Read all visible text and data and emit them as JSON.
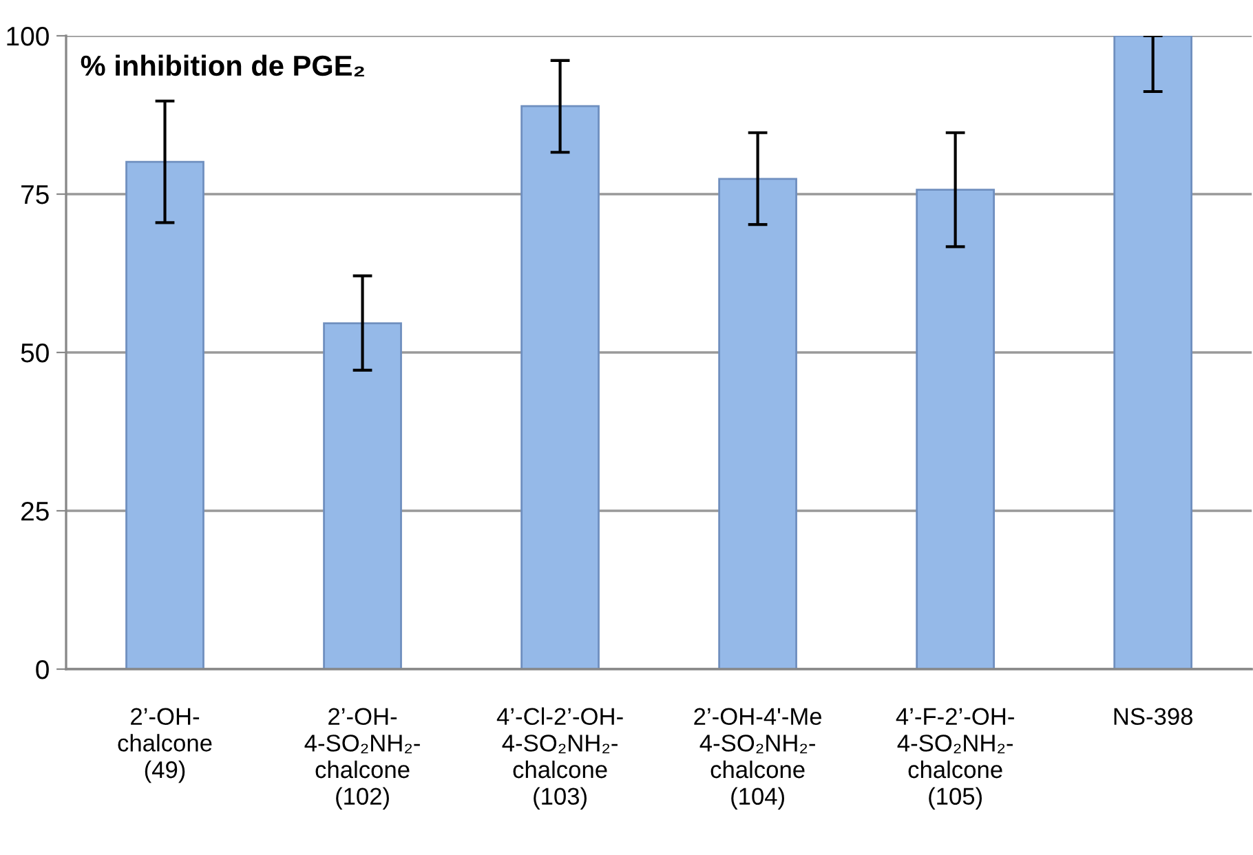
{
  "chart_data": {
    "type": "bar",
    "title": "% inhibition de PGE₂",
    "categories": [
      "2’-OH-\nchalcone\n(49)",
      "2’-OH-\n4-SO₂NH₂-\nchalcone\n(102)",
      "4’-Cl-2’-OH-\n4-SO₂NH₂-\nchalcone\n(103)",
      "2’-OH-4'-Me\n4-SO₂NH₂-\nchalcone\n(104)",
      "4’-F-2’-OH-\n4-SO₂NH₂-\nchalcone\n(105)",
      "NS-398"
    ],
    "values": [
      80.1,
      54.6,
      88.9,
      77.4,
      75.7,
      100
    ],
    "errors": [
      [
        70.5,
        89.7
      ],
      [
        47.2,
        62.1
      ],
      [
        81.6,
        96.1
      ],
      [
        70.2,
        84.7
      ],
      [
        66.7,
        84.7
      ],
      [
        91.2,
        100
      ]
    ],
    "color": "#95b9e8",
    "ylim": [
      0,
      100
    ],
    "yticks": [
      0,
      25,
      50,
      75,
      100
    ],
    "grid": "y"
  }
}
